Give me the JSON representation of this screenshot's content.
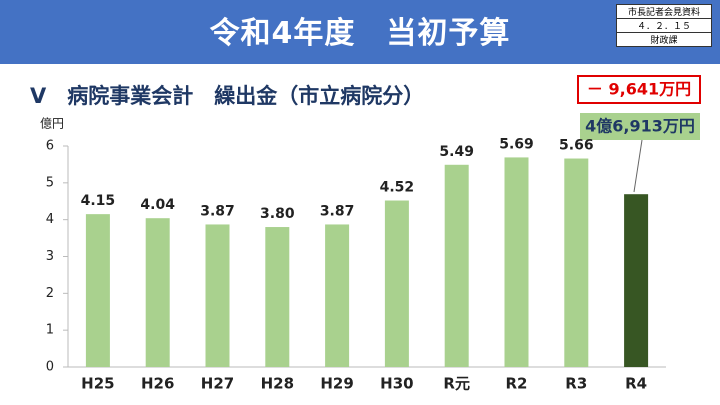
{
  "header": {
    "title": "令和4年度　当初予算",
    "stamp": [
      "市長記者会見資料",
      "４．２．１５",
      "財政課"
    ]
  },
  "chart_data": {
    "type": "bar",
    "title": "V　病院事業会計　繰出金（市立病院分）",
    "y_label": "億円",
    "categories": [
      "H25",
      "H26",
      "H27",
      "H28",
      "H29",
      "H30",
      "R元",
      "R2",
      "R3",
      "R4"
    ],
    "values": [
      4.15,
      4.04,
      3.87,
      3.8,
      3.87,
      4.52,
      5.49,
      5.69,
      5.66,
      4.6913
    ],
    "value_labels": [
      "4.15",
      "4.04",
      "3.87",
      "3.80",
      "3.87",
      "4.52",
      "5.49",
      "5.69",
      "5.66",
      null
    ],
    "colors": [
      "#a9d18e",
      "#a9d18e",
      "#a9d18e",
      "#a9d18e",
      "#a9d18e",
      "#a9d18e",
      "#a9d18e",
      "#a9d18e",
      "#a9d18e",
      "#375623"
    ],
    "ylim": [
      0,
      6
    ],
    "yticks": [
      0,
      1,
      2,
      3,
      4,
      5,
      6
    ],
    "grid": false,
    "annotations": [
      {
        "text": "－ 9,641万円"
      },
      {
        "text": "4億6,913万円"
      }
    ]
  }
}
